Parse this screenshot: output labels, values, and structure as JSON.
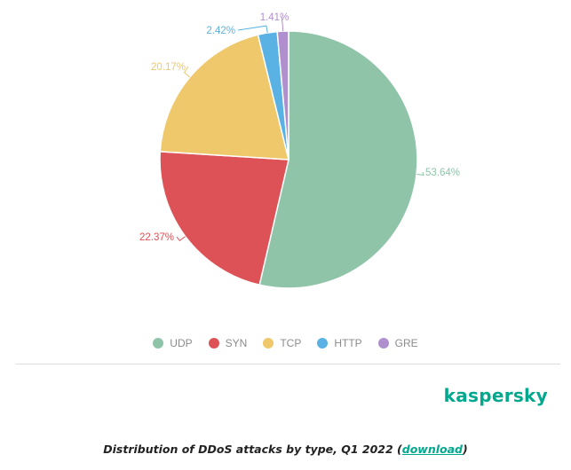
{
  "chart_data": {
    "type": "pie",
    "title": "",
    "categories": [
      "UDP",
      "SYN",
      "TCP",
      "HTTP",
      "GRE"
    ],
    "values": [
      53.64,
      22.37,
      20.17,
      2.42,
      1.41
    ],
    "labels": [
      "53.64%",
      "22.37%",
      "20.17%",
      "2.42%",
      "1.41%"
    ],
    "colors": [
      "#8fc4a8",
      "#dd5256",
      "#eec86a",
      "#5ab2e4",
      "#b08fcf"
    ],
    "legend_position": "bottom",
    "start_angle_deg": 0,
    "direction": "clockwise"
  },
  "legend": {
    "items": [
      {
        "label": "UDP",
        "color": "#8fc4a8"
      },
      {
        "label": "SYN",
        "color": "#dd5256"
      },
      {
        "label": "TCP",
        "color": "#eec86a"
      },
      {
        "label": "HTTP",
        "color": "#5ab2e4"
      },
      {
        "label": "GRE",
        "color": "#b08fcf"
      }
    ]
  },
  "brand": {
    "logo_text": "kaspersky",
    "color": "#00a88e"
  },
  "caption": {
    "text": "Distribution of DDoS attacks by type, Q1 2022 (",
    "link": "download",
    "suffix": ")"
  }
}
